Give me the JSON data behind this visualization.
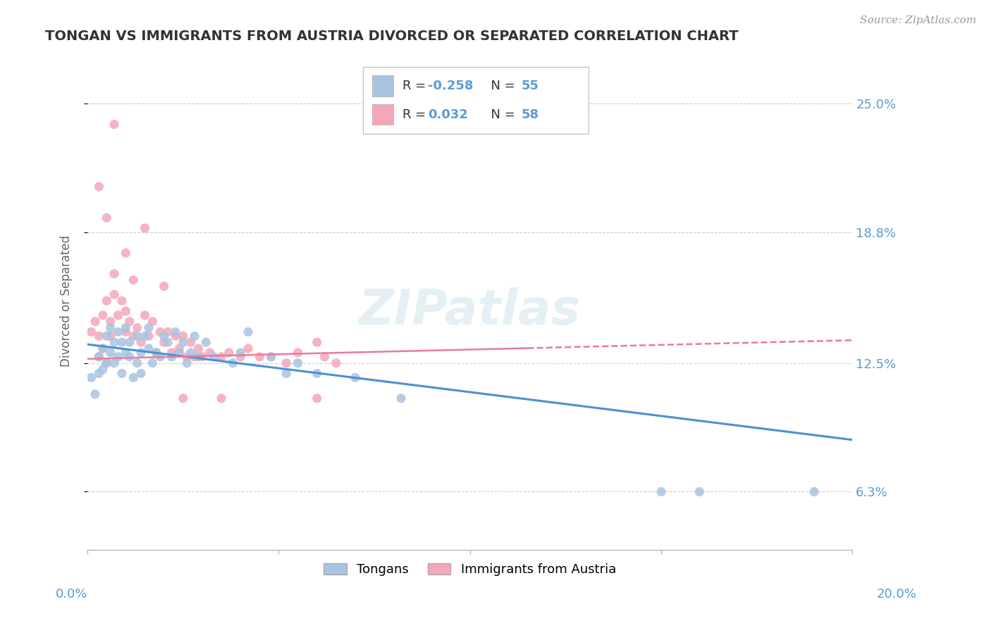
{
  "title": "TONGAN VS IMMIGRANTS FROM AUSTRIA DIVORCED OR SEPARATED CORRELATION CHART",
  "source": "Source: ZipAtlas.com",
  "ylabel": "Divorced or Separated",
  "y_tick_labels": [
    "6.3%",
    "12.5%",
    "18.8%",
    "25.0%"
  ],
  "y_tick_values": [
    0.063,
    0.125,
    0.188,
    0.25
  ],
  "xlim": [
    0.0,
    0.2
  ],
  "ylim": [
    0.035,
    0.275
  ],
  "tongan_color": "#a8c4e0",
  "austria_color": "#f4a7b9",
  "tongan_line_color": "#4a90d9",
  "austria_line_color": "#e87a9f",
  "background_color": "#ffffff",
  "tongan_line_start_y": 0.134,
  "tongan_line_end_y": 0.088,
  "austria_line_start_y": 0.127,
  "austria_line_end_y": 0.136,
  "tongan_scatter_x": [
    0.001,
    0.002,
    0.003,
    0.003,
    0.004,
    0.004,
    0.005,
    0.005,
    0.006,
    0.006,
    0.007,
    0.007,
    0.008,
    0.008,
    0.009,
    0.009,
    0.01,
    0.01,
    0.011,
    0.011,
    0.012,
    0.013,
    0.013,
    0.014,
    0.014,
    0.015,
    0.016,
    0.016,
    0.017,
    0.018,
    0.019,
    0.02,
    0.021,
    0.022,
    0.023,
    0.024,
    0.025,
    0.026,
    0.027,
    0.028,
    0.029,
    0.031,
    0.033,
    0.038,
    0.04,
    0.042,
    0.048,
    0.052,
    0.055,
    0.06,
    0.07,
    0.082,
    0.15,
    0.16,
    0.19
  ],
  "tongan_scatter_y": [
    0.118,
    0.11,
    0.128,
    0.12,
    0.132,
    0.122,
    0.138,
    0.125,
    0.13,
    0.142,
    0.125,
    0.135,
    0.14,
    0.128,
    0.135,
    0.12,
    0.13,
    0.142,
    0.128,
    0.135,
    0.118,
    0.138,
    0.125,
    0.13,
    0.12,
    0.138,
    0.132,
    0.142,
    0.125,
    0.13,
    0.128,
    0.138,
    0.135,
    0.128,
    0.14,
    0.13,
    0.135,
    0.125,
    0.13,
    0.138,
    0.128,
    0.135,
    0.128,
    0.125,
    0.13,
    0.14,
    0.128,
    0.12,
    0.125,
    0.12,
    0.118,
    0.108,
    0.063,
    0.063,
    0.063
  ],
  "austria_scatter_x": [
    0.001,
    0.002,
    0.003,
    0.003,
    0.004,
    0.004,
    0.005,
    0.005,
    0.006,
    0.006,
    0.007,
    0.007,
    0.008,
    0.009,
    0.01,
    0.01,
    0.011,
    0.012,
    0.013,
    0.014,
    0.015,
    0.016,
    0.017,
    0.018,
    0.019,
    0.02,
    0.021,
    0.022,
    0.023,
    0.024,
    0.025,
    0.026,
    0.027,
    0.028,
    0.029,
    0.03,
    0.032,
    0.035,
    0.037,
    0.04,
    0.042,
    0.045,
    0.048,
    0.052,
    0.055,
    0.06,
    0.062,
    0.065,
    0.003,
    0.005,
    0.007,
    0.01,
    0.012,
    0.015,
    0.02,
    0.025,
    0.035,
    0.06
  ],
  "austria_scatter_y": [
    0.14,
    0.145,
    0.128,
    0.138,
    0.132,
    0.148,
    0.155,
    0.125,
    0.138,
    0.145,
    0.158,
    0.168,
    0.148,
    0.155,
    0.14,
    0.15,
    0.145,
    0.138,
    0.142,
    0.135,
    0.148,
    0.138,
    0.145,
    0.13,
    0.14,
    0.135,
    0.14,
    0.13,
    0.138,
    0.132,
    0.138,
    0.128,
    0.135,
    0.128,
    0.132,
    0.128,
    0.13,
    0.128,
    0.13,
    0.128,
    0.132,
    0.128,
    0.128,
    0.125,
    0.13,
    0.135,
    0.128,
    0.125,
    0.21,
    0.195,
    0.24,
    0.178,
    0.165,
    0.19,
    0.162,
    0.108,
    0.108,
    0.108
  ]
}
